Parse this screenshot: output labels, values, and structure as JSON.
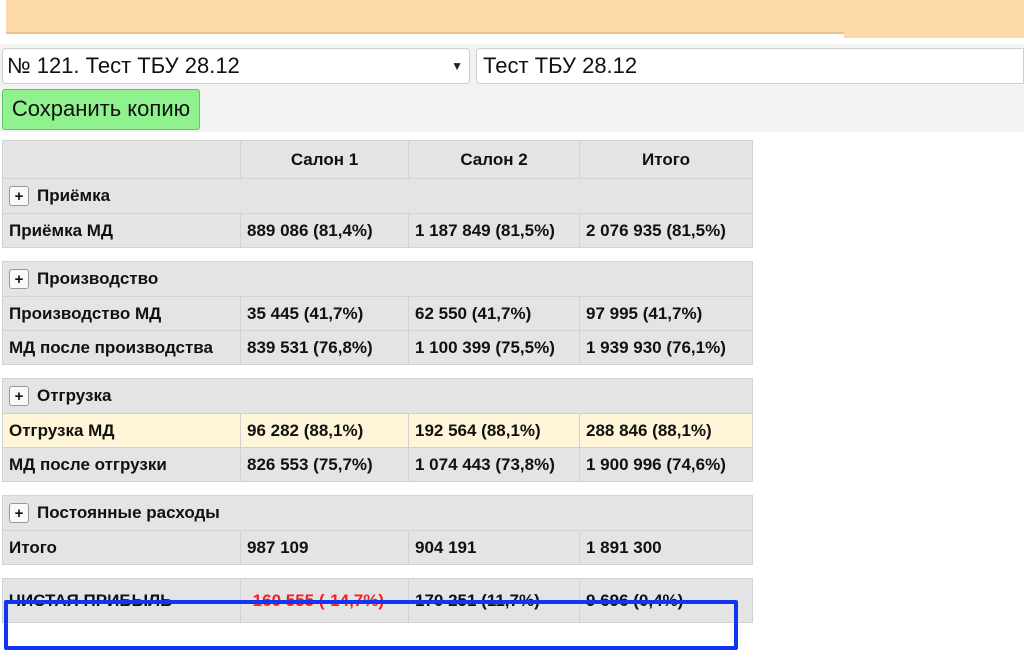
{
  "header": {
    "select_value": "№ 121. Тест ТБУ 28.12",
    "name_value": "Тест ТБУ 28.12",
    "save_label": "Сохранить копию"
  },
  "table": {
    "columns": [
      "",
      "Салон 1",
      "Салон 2",
      "Итого"
    ],
    "sections": {
      "reception": "Приёмка",
      "production": "Производство",
      "shipment": "Отгрузка",
      "fixed_costs": "Постоянные расходы"
    },
    "rows": {
      "reception_md": [
        "Приёмка МД",
        "889 086 (81,4%)",
        "1 187 849 (81,5%)",
        "2 076 935 (81,5%)"
      ],
      "production_md": [
        "Производство МД",
        "35 445 (41,7%)",
        "62 550 (41,7%)",
        "97 995 (41,7%)"
      ],
      "md_after_production": [
        "МД после производства",
        "839 531 (76,8%)",
        "1 100 399 (75,5%)",
        "1 939 930 (76,1%)"
      ],
      "shipment_md": [
        "Отгрузка МД",
        "96 282 (88,1%)",
        "192 564 (88,1%)",
        "288 846 (88,1%)"
      ],
      "md_after_shipment": [
        "МД после отгрузки",
        "826 553 (75,7%)",
        "1 074 443 (73,8%)",
        "1 900 996 (74,6%)"
      ],
      "total": [
        "Итого",
        "987 109",
        "904 191",
        "1 891 300"
      ],
      "net_profit": [
        "ЧИСТАЯ ПРИБЫЛЬ",
        "-160 555 (-14,7%)",
        "170 251 (11,7%)",
        "9 696 (0,4%)"
      ]
    }
  },
  "colors": {
    "top_bar": "#fcd9a8",
    "save_button": "#8ff28f",
    "negative": "#ff1a1a",
    "highlight_border": "#1036f5",
    "row_highlight": "#fff6d9"
  },
  "icons": {
    "expand": "+",
    "dropdown": "▼"
  }
}
